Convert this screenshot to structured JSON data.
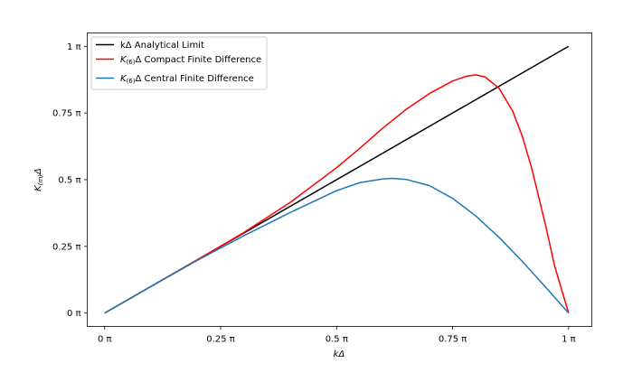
{
  "chart_data": {
    "type": "line",
    "xlabel": "kΔ",
    "ylabel": "K_(m)Δ",
    "ylabel_parts": {
      "base": "K",
      "sub": "(m)",
      "after": "Δ"
    },
    "xlim": [
      -0.0375,
      1.05
    ],
    "ylim": [
      -0.05,
      1.05
    ],
    "x_ticks": [
      {
        "value": 0.0,
        "label": "0 π"
      },
      {
        "value": 0.25,
        "label": "0.25 π"
      },
      {
        "value": 0.5,
        "label": "0.5 π"
      },
      {
        "value": 0.75,
        "label": "0.75 π"
      },
      {
        "value": 1.0,
        "label": "1 π"
      }
    ],
    "y_ticks": [
      {
        "value": 0.0,
        "label": "0 π"
      },
      {
        "value": 0.25,
        "label": "0.25 π"
      },
      {
        "value": 0.5,
        "label": "0.5 π"
      },
      {
        "value": 0.75,
        "label": "0.75 π"
      },
      {
        "value": 1.0,
        "label": "1 π"
      }
    ],
    "grid": false,
    "legend_placement": "top-left",
    "series": [
      {
        "name": "kΔ Analytical Limit",
        "legend_parts": {
          "base": "kΔ Analytical Limit",
          "sub": "",
          "after": ""
        },
        "color": "#000000",
        "x": [
          0.0,
          1.0
        ],
        "y": [
          0.0,
          1.0
        ]
      },
      {
        "name": "K(6)Δ Compact Finite Difference",
        "legend_parts": {
          "base": "K",
          "sub": "(6)",
          "after": "Δ Compact Finite Difference"
        },
        "color": "#ff0000",
        "x": [
          0.0,
          0.1,
          0.2,
          0.3,
          0.4,
          0.5,
          0.55,
          0.6,
          0.65,
          0.7,
          0.75,
          0.78,
          0.8,
          0.82,
          0.85,
          0.88,
          0.9,
          0.92,
          0.95,
          0.97,
          1.0
        ],
        "y": [
          0.0,
          0.1,
          0.2,
          0.302,
          0.415,
          0.545,
          0.618,
          0.694,
          0.764,
          0.823,
          0.87,
          0.888,
          0.893,
          0.885,
          0.843,
          0.755,
          0.664,
          0.546,
          0.332,
          0.176,
          0.0
        ]
      },
      {
        "name": "K(6)Δ Central Finite Difference",
        "legend_parts": {
          "base": "K",
          "sub": "(6)",
          "after": "Δ Central Finite Difference"
        },
        "color": "#1f77b4",
        "x": [
          0.0,
          0.1,
          0.2,
          0.3,
          0.4,
          0.5,
          0.55,
          0.6,
          0.62,
          0.65,
          0.7,
          0.75,
          0.8,
          0.85,
          0.9,
          0.95,
          1.0
        ],
        "y": [
          0.0,
          0.1,
          0.198,
          0.29,
          0.377,
          0.459,
          0.489,
          0.503,
          0.505,
          0.501,
          0.478,
          0.43,
          0.364,
          0.284,
          0.194,
          0.098,
          0.0
        ]
      }
    ]
  }
}
